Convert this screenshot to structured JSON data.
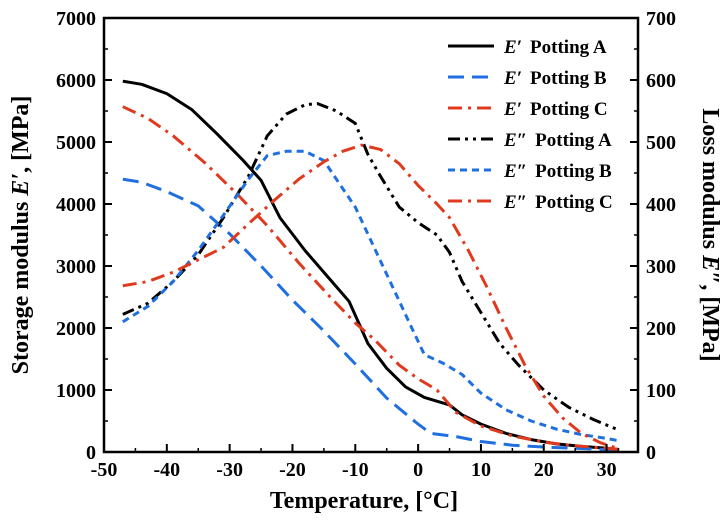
{
  "chart_data": {
    "type": "line",
    "xlabel": "Temperature, [°C]",
    "ylabel_left_prefix": "Storage modulus ",
    "ylabel_left_symbol": "E′",
    "ylabel_left_suffix": ", [MPa]",
    "ylabel_right_prefix": "Loss modulus ",
    "ylabel_right_symbol": "E″",
    "ylabel_right_suffix": ", [MPa]",
    "xlim": [
      -50,
      35
    ],
    "ylim_left": [
      0,
      7000
    ],
    "ylim_right": [
      0,
      700
    ],
    "x_ticks": [
      "-50",
      "-40",
      "-30",
      "-20",
      "-10",
      "0",
      "10",
      "20",
      "30"
    ],
    "y_left_ticks": [
      "0",
      "1000",
      "2000",
      "3000",
      "4000",
      "5000",
      "6000",
      "7000"
    ],
    "y_right_ticks": [
      "0",
      "100",
      "200",
      "300",
      "400",
      "500",
      "600",
      "700"
    ],
    "grid": false,
    "legend_position": "top-right",
    "series": [
      {
        "name": "Potting A",
        "symbol": "E′",
        "axis": "left",
        "color": "#000000",
        "dash": "solid",
        "points": [
          [
            -47,
            5980
          ],
          [
            -44,
            5930
          ],
          [
            -40,
            5780
          ],
          [
            -36,
            5520
          ],
          [
            -32,
            5130
          ],
          [
            -28,
            4720
          ],
          [
            -25,
            4380
          ],
          [
            -22,
            3780
          ],
          [
            -18,
            3250
          ],
          [
            -14,
            2780
          ],
          [
            -11,
            2430
          ],
          [
            -8,
            1750
          ],
          [
            -5,
            1350
          ],
          [
            -2,
            1050
          ],
          [
            1,
            880
          ],
          [
            5,
            760
          ],
          [
            7,
            600
          ],
          [
            10,
            450
          ],
          [
            14,
            300
          ],
          [
            18,
            200
          ],
          [
            22,
            130
          ],
          [
            26,
            90
          ],
          [
            30,
            60
          ],
          [
            32,
            40
          ]
        ]
      },
      {
        "name": "Potting B",
        "symbol": "E′",
        "axis": "left",
        "color": "#1f6fe0",
        "dash": "dashed",
        "points": [
          [
            -47,
            4400
          ],
          [
            -44,
            4350
          ],
          [
            -40,
            4200
          ],
          [
            -35,
            3970
          ],
          [
            -30,
            3520
          ],
          [
            -25,
            3000
          ],
          [
            -20,
            2450
          ],
          [
            -15,
            1950
          ],
          [
            -10,
            1420
          ],
          [
            -5,
            870
          ],
          [
            0,
            450
          ],
          [
            2,
            300
          ],
          [
            6,
            250
          ],
          [
            10,
            170
          ],
          [
            15,
            110
          ],
          [
            20,
            80
          ],
          [
            25,
            60
          ],
          [
            30,
            40
          ],
          [
            32,
            30
          ]
        ]
      },
      {
        "name": "Potting C",
        "symbol": "E′",
        "axis": "left",
        "color": "#e03a1e",
        "dash": "dashdot",
        "points": [
          [
            -47,
            5570
          ],
          [
            -43,
            5380
          ],
          [
            -39,
            5100
          ],
          [
            -34,
            4670
          ],
          [
            -29,
            4180
          ],
          [
            -24,
            3650
          ],
          [
            -19,
            3050
          ],
          [
            -14,
            2500
          ],
          [
            -10,
            2080
          ],
          [
            -7,
            1820
          ],
          [
            -3,
            1400
          ],
          [
            0,
            1180
          ],
          [
            3,
            1000
          ],
          [
            6,
            640
          ],
          [
            10,
            420
          ],
          [
            15,
            260
          ],
          [
            20,
            160
          ],
          [
            25,
            100
          ],
          [
            30,
            60
          ],
          [
            32,
            40
          ]
        ]
      },
      {
        "name": "Potting A",
        "symbol": "E″",
        "axis": "right",
        "color": "#000000",
        "dash": "dashdotdot",
        "points": [
          [
            -47,
            222
          ],
          [
            -43,
            240
          ],
          [
            -39,
            275
          ],
          [
            -35,
            318
          ],
          [
            -31,
            378
          ],
          [
            -27,
            445
          ],
          [
            -24,
            510
          ],
          [
            -21,
            545
          ],
          [
            -18,
            560
          ],
          [
            -16,
            562
          ],
          [
            -13,
            550
          ],
          [
            -10,
            530
          ],
          [
            -8,
            480
          ],
          [
            -6,
            445
          ],
          [
            -3,
            395
          ],
          [
            0,
            370
          ],
          [
            3,
            350
          ],
          [
            5,
            322
          ],
          [
            7,
            275
          ],
          [
            10,
            225
          ],
          [
            13,
            175
          ],
          [
            16,
            140
          ],
          [
            20,
            100
          ],
          [
            24,
            72
          ],
          [
            28,
            52
          ],
          [
            32,
            35
          ]
        ]
      },
      {
        "name": "Potting B",
        "symbol": "E″",
        "axis": "right",
        "color": "#1f6fe0",
        "dash": "shortdash",
        "points": [
          [
            -47,
            210
          ],
          [
            -43,
            235
          ],
          [
            -39,
            275
          ],
          [
            -35,
            325
          ],
          [
            -31,
            382
          ],
          [
            -27,
            440
          ],
          [
            -24,
            478
          ],
          [
            -21,
            485
          ],
          [
            -18,
            485
          ],
          [
            -15,
            470
          ],
          [
            -13,
            440
          ],
          [
            -10,
            395
          ],
          [
            -7,
            330
          ],
          [
            -4,
            265
          ],
          [
            -1,
            200
          ],
          [
            1,
            157
          ],
          [
            4,
            143
          ],
          [
            7,
            125
          ],
          [
            10,
            95
          ],
          [
            14,
            68
          ],
          [
            18,
            50
          ],
          [
            22,
            37
          ],
          [
            26,
            28
          ],
          [
            30,
            22
          ],
          [
            32,
            18
          ]
        ]
      },
      {
        "name": "Potting C",
        "symbol": "E″",
        "axis": "right",
        "color": "#e03a1e",
        "dash": "dashdot",
        "points": [
          [
            -47,
            268
          ],
          [
            -43,
            275
          ],
          [
            -39,
            290
          ],
          [
            -35,
            310
          ],
          [
            -31,
            330
          ],
          [
            -27,
            368
          ],
          [
            -23,
            405
          ],
          [
            -19,
            440
          ],
          [
            -15,
            468
          ],
          [
            -12,
            485
          ],
          [
            -9,
            495
          ],
          [
            -6,
            488
          ],
          [
            -3,
            465
          ],
          [
            0,
            430
          ],
          [
            3,
            400
          ],
          [
            5,
            378
          ],
          [
            8,
            325
          ],
          [
            11,
            265
          ],
          [
            14,
            200
          ],
          [
            17,
            140
          ],
          [
            20,
            90
          ],
          [
            23,
            55
          ],
          [
            26,
            30
          ],
          [
            29,
            15
          ],
          [
            32,
            5
          ]
        ]
      }
    ]
  }
}
